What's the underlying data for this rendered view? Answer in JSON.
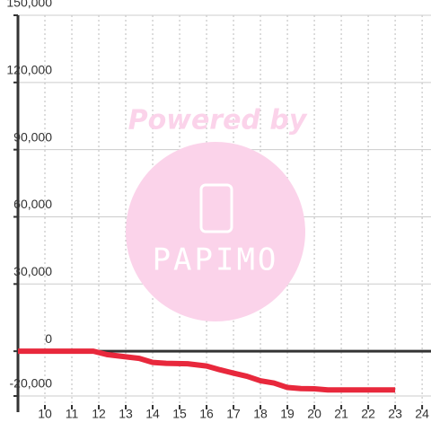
{
  "chart_data": {
    "type": "line",
    "x": [
      9,
      11.8,
      12.3,
      13,
      13.5,
      14,
      14.5,
      15.3,
      16,
      16.5,
      17,
      17.5,
      18,
      18.5,
      19,
      19.5,
      20,
      20.5,
      21,
      22,
      23
    ],
    "series": [
      {
        "color": "#e8283c",
        "values": [
          0,
          0,
          -1500,
          -2500,
          -3200,
          -5000,
          -5400,
          -5600,
          -6600,
          -8300,
          -9800,
          -11200,
          -13200,
          -14200,
          -16200,
          -16700,
          -16800,
          -17300,
          -17300,
          -17300,
          -17300
        ]
      }
    ],
    "xlim": [
      9,
      24.33
    ],
    "xticks": [
      10,
      11,
      12,
      13,
      14,
      15,
      16,
      17,
      18,
      19,
      20,
      21,
      22,
      23,
      24
    ],
    "ylim": [
      -24000,
      150000
    ],
    "yticks": [
      {
        "value": -20000,
        "label": "-20,000"
      },
      0,
      {
        "value": 30000,
        "label": "30,000"
      },
      {
        "value": 60000,
        "label": "60,000"
      },
      {
        "value": 90000,
        "label": "90,000"
      },
      {
        "value": 120000,
        "label": "120,000"
      },
      {
        "value": 150000,
        "label": "150,000"
      }
    ],
    "grid": true,
    "watermark": {
      "text": "Powered by",
      "logo": "PAPIMO"
    }
  }
}
